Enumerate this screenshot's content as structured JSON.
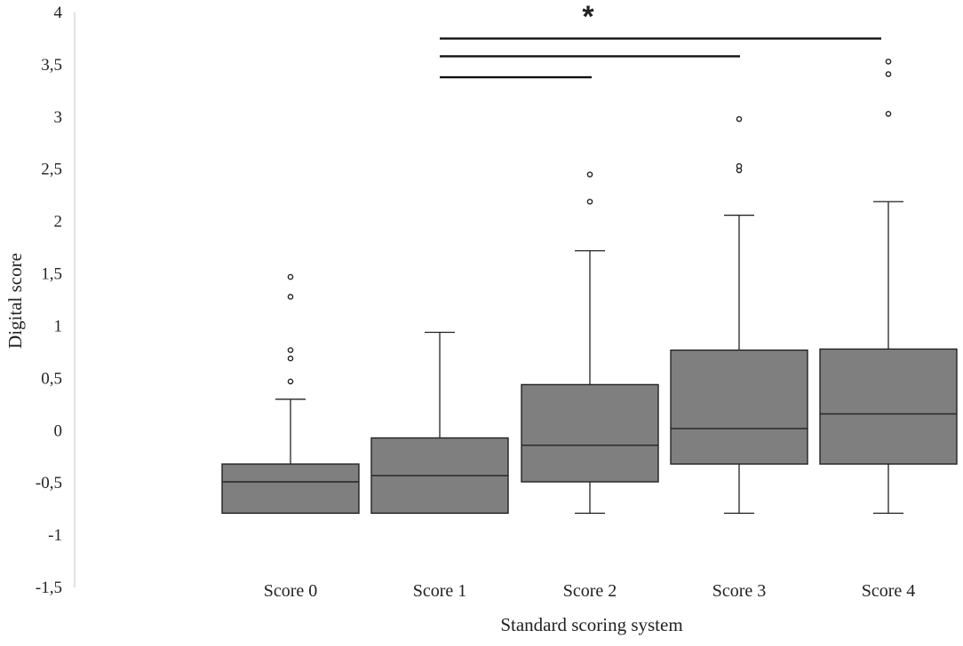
{
  "chart_data": {
    "type": "box",
    "xlabel": "Standard scoring system",
    "ylabel": "Digital score",
    "ylim": [
      -1.5,
      4
    ],
    "yticks": [
      -1.5,
      -1,
      -0.5,
      0,
      0.5,
      1,
      1.5,
      2,
      2.5,
      3,
      3.5,
      4
    ],
    "ytick_labels": [
      "-1,5",
      "-1",
      "-0,5",
      "0",
      "0,5",
      "1",
      "1,5",
      "2",
      "2,5",
      "3",
      "3,5",
      "4"
    ],
    "grid": false,
    "categories": [
      "Score 0",
      "Score 1",
      "Score 2",
      "Score 3",
      "Score 4"
    ],
    "boxes": [
      {
        "whisker_low": -0.79,
        "q1": -0.79,
        "median": -0.49,
        "q3": -0.32,
        "whisker_high": 0.3,
        "outliers": [
          0.47,
          0.69,
          0.77,
          1.28,
          1.47
        ]
      },
      {
        "whisker_low": -0.79,
        "q1": -0.79,
        "median": -0.43,
        "q3": -0.07,
        "whisker_high": 0.94,
        "outliers": []
      },
      {
        "whisker_low": -0.79,
        "q1": -0.49,
        "median": -0.14,
        "q3": 0.44,
        "whisker_high": 1.72,
        "outliers": [
          2.19,
          2.45
        ]
      },
      {
        "whisker_low": -0.79,
        "q1": -0.32,
        "median": 0.02,
        "q3": 0.77,
        "whisker_high": 2.06,
        "outliers": [
          2.49,
          2.53,
          2.98
        ]
      },
      {
        "whisker_low": -0.79,
        "q1": -0.32,
        "median": 0.16,
        "q3": 0.78,
        "whisker_high": 2.19,
        "outliers": [
          3.03,
          3.41,
          3.53
        ]
      }
    ],
    "box_color": "#7f7f7f",
    "significance": {
      "label": "*",
      "brackets": [
        {
          "from": "Score 1",
          "to": "Score 2",
          "y": 3.38
        },
        {
          "from": "Score 1",
          "to": "Score 3",
          "y": 3.58
        },
        {
          "from": "Score 1",
          "to": "Score 4",
          "y": 3.75
        }
      ]
    }
  }
}
